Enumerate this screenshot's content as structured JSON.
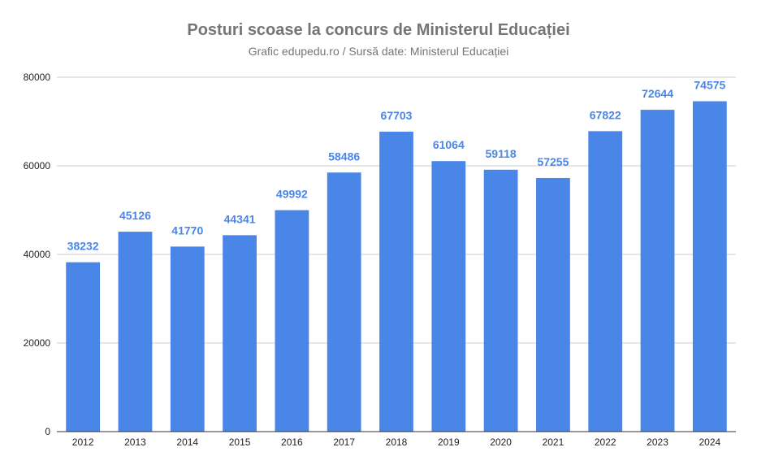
{
  "chart_data": {
    "type": "bar",
    "title": "Posturi scoase la concurs de Ministerul Educației",
    "subtitle": "Grafic edupedu.ro / Sursă date: Ministerul Educației",
    "xlabel": "",
    "ylabel": "",
    "categories": [
      "2012",
      "2013",
      "2014",
      "2015",
      "2016",
      "2017",
      "2018",
      "2019",
      "2020",
      "2021",
      "2022",
      "2023",
      "2024"
    ],
    "values": [
      38232,
      45126,
      41770,
      44341,
      49992,
      58486,
      67703,
      61064,
      59118,
      57255,
      67822,
      72644,
      74575
    ],
    "data_labels": [
      "38232",
      "45126",
      "41770",
      "44341",
      "49992",
      "58486",
      "67703",
      "61064",
      "59118",
      "57255",
      "67822",
      "72644",
      "74575"
    ],
    "ylim": [
      0,
      80000
    ],
    "yticks": [
      0,
      20000,
      40000,
      60000,
      80000
    ],
    "ytick_labels": [
      "0",
      "20000",
      "40000",
      "60000",
      "80000"
    ],
    "grid": true,
    "legend": "none",
    "colors": {
      "bar": "#4a86e8",
      "data_label": "#4a86e8",
      "title": "#757575",
      "gridline": "#cccccc",
      "axis": "#333333",
      "tick_label": "#222222"
    }
  }
}
